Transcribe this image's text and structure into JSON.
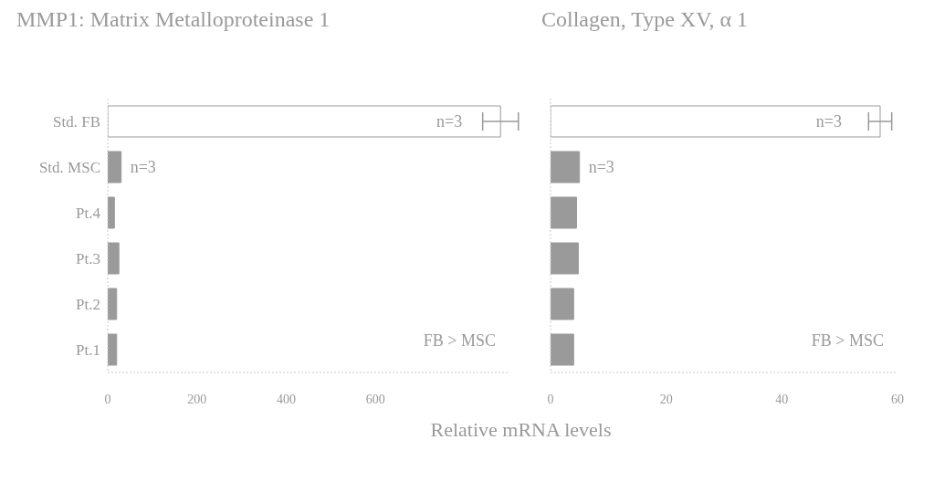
{
  "chart_data": [
    {
      "type": "bar",
      "orientation": "horizontal",
      "title": "MMP1: Matrix Metalloproteinase 1",
      "xlabel": "Relative mRNA levels",
      "categories": [
        "Std. FB",
        "Std. MSC",
        "Pt.4",
        "Pt.3",
        "Pt.2",
        "Pt.1"
      ],
      "values": [
        880,
        30,
        15,
        25,
        20,
        20
      ],
      "errors": [
        40,
        null,
        null,
        null,
        null,
        null
      ],
      "colors": [
        "#ffffff",
        "#9a9a9a",
        "#9a9a9a",
        "#9a9a9a",
        "#9a9a9a",
        "#9a9a9a"
      ],
      "xlim": [
        0,
        900
      ],
      "xticks": [
        0,
        200,
        400,
        600
      ],
      "grid": false,
      "annotations": [
        {
          "text": "n=3",
          "x": 880,
          "y": "Std. FB"
        },
        {
          "text": "n=3",
          "x": 30,
          "y": "Std. MSC"
        },
        "FB > MSC"
      ]
    },
    {
      "type": "bar",
      "orientation": "horizontal",
      "title": "Collagen, Type XV, α 1",
      "values": [
        57,
        5,
        4.5,
        4.8,
        4,
        4
      ],
      "categories": [
        null,
        null,
        null,
        null,
        null,
        null
      ],
      "errors": [
        2,
        null,
        null,
        null,
        null,
        null
      ],
      "colors": [
        "#ffffff",
        "#9a9a9a",
        "#9a9a9a",
        "#9a9a9a",
        "#9a9a9a",
        "#9a9a9a"
      ],
      "xlim": [
        0,
        60
      ],
      "xticks": [
        0,
        20,
        40,
        60
      ],
      "grid": false,
      "tick_labels": "x",
      "annotations": [
        {
          "text": "n=3",
          "x": 57
        },
        {
          "text": "n=3",
          "x": 5
        },
        "FB > MSC"
      ]
    }
  ]
}
